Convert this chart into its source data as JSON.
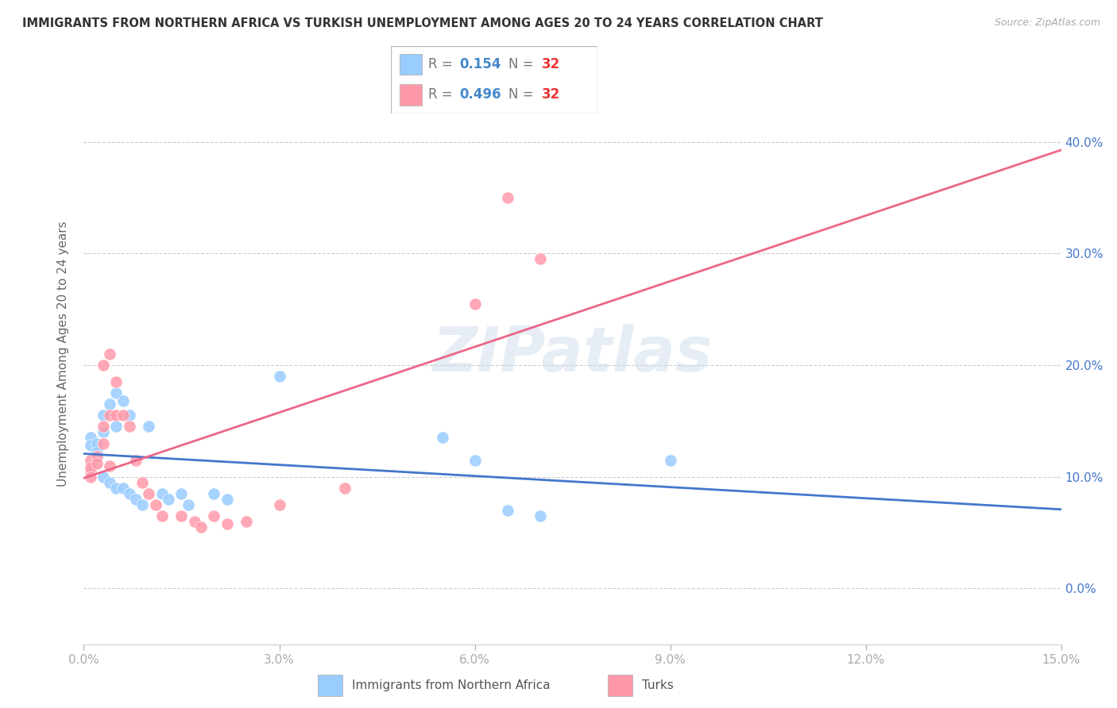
{
  "title": "IMMIGRANTS FROM NORTHERN AFRICA VS TURKISH UNEMPLOYMENT AMONG AGES 20 TO 24 YEARS CORRELATION CHART",
  "source": "Source: ZipAtlas.com",
  "ylabel": "Unemployment Among Ages 20 to 24 years",
  "xlim": [
    0.0,
    0.15
  ],
  "ylim": [
    -0.05,
    0.47
  ],
  "xticks": [
    0.0,
    0.03,
    0.06,
    0.09,
    0.12,
    0.15
  ],
  "yticks": [
    0.0,
    0.1,
    0.2,
    0.3,
    0.4
  ],
  "R_blue": 0.154,
  "N_blue": 32,
  "R_pink": 0.496,
  "N_pink": 32,
  "color_blue": "#99CCFF",
  "color_pink": "#FF99AA",
  "line_color_blue": "#4477CC",
  "line_color_pink": "#EE6688",
  "watermark": "ZIPatlas",
  "blue_scatter": [
    [
      0.001,
      0.135
    ],
    [
      0.001,
      0.128
    ],
    [
      0.002,
      0.13
    ],
    [
      0.002,
      0.122
    ],
    [
      0.002,
      0.118
    ],
    [
      0.003,
      0.14
    ],
    [
      0.003,
      0.155
    ],
    [
      0.003,
      0.1
    ],
    [
      0.004,
      0.165
    ],
    [
      0.004,
      0.095
    ],
    [
      0.005,
      0.175
    ],
    [
      0.005,
      0.145
    ],
    [
      0.005,
      0.09
    ],
    [
      0.006,
      0.168
    ],
    [
      0.006,
      0.09
    ],
    [
      0.007,
      0.155
    ],
    [
      0.007,
      0.085
    ],
    [
      0.008,
      0.08
    ],
    [
      0.009,
      0.075
    ],
    [
      0.01,
      0.145
    ],
    [
      0.012,
      0.085
    ],
    [
      0.013,
      0.08
    ],
    [
      0.015,
      0.085
    ],
    [
      0.016,
      0.075
    ],
    [
      0.02,
      0.085
    ],
    [
      0.022,
      0.08
    ],
    [
      0.03,
      0.19
    ],
    [
      0.055,
      0.135
    ],
    [
      0.06,
      0.115
    ],
    [
      0.065,
      0.07
    ],
    [
      0.07,
      0.065
    ],
    [
      0.09,
      0.115
    ]
  ],
  "pink_scatter": [
    [
      0.001,
      0.105
    ],
    [
      0.001,
      0.115
    ],
    [
      0.001,
      0.108
    ],
    [
      0.001,
      0.1
    ],
    [
      0.002,
      0.118
    ],
    [
      0.002,
      0.112
    ],
    [
      0.003,
      0.2
    ],
    [
      0.003,
      0.145
    ],
    [
      0.003,
      0.13
    ],
    [
      0.004,
      0.21
    ],
    [
      0.004,
      0.155
    ],
    [
      0.004,
      0.11
    ],
    [
      0.005,
      0.185
    ],
    [
      0.005,
      0.155
    ],
    [
      0.006,
      0.155
    ],
    [
      0.007,
      0.145
    ],
    [
      0.008,
      0.115
    ],
    [
      0.009,
      0.095
    ],
    [
      0.01,
      0.085
    ],
    [
      0.011,
      0.075
    ],
    [
      0.012,
      0.065
    ],
    [
      0.015,
      0.065
    ],
    [
      0.017,
      0.06
    ],
    [
      0.018,
      0.055
    ],
    [
      0.02,
      0.065
    ],
    [
      0.022,
      0.058
    ],
    [
      0.025,
      0.06
    ],
    [
      0.03,
      0.075
    ],
    [
      0.04,
      0.09
    ],
    [
      0.06,
      0.255
    ],
    [
      0.065,
      0.35
    ],
    [
      0.07,
      0.295
    ]
  ]
}
